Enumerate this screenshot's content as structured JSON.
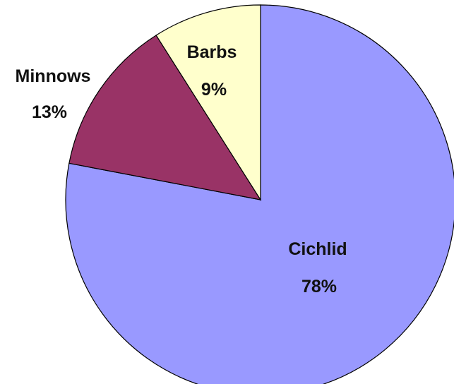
{
  "chart_data": {
    "type": "pie",
    "title": "",
    "slices": [
      {
        "label": "Cichlid",
        "value": 78,
        "value_label": "78%",
        "color": "#9999ff"
      },
      {
        "label": "Minnows",
        "value": 13,
        "value_label": "13%",
        "color": "#993366"
      },
      {
        "label": "Barbs",
        "value": 9,
        "value_label": "9%",
        "color": "#ffffcc"
      }
    ],
    "start": "top",
    "direction": "clockwise",
    "legend": "none",
    "labels_position": "inside-and-outside"
  }
}
